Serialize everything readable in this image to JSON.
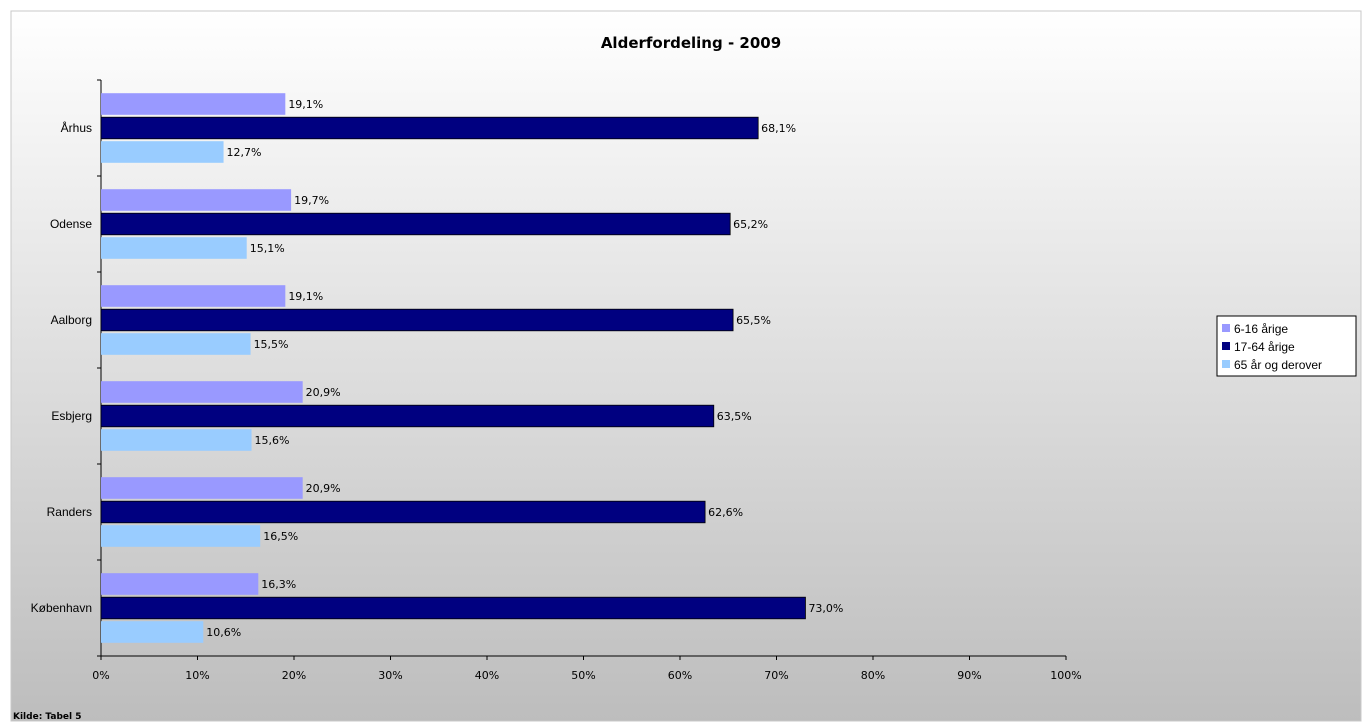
{
  "chart_data": {
    "type": "bar",
    "orientation": "horizontal",
    "title": "Alderfordeling - 2009",
    "categories": [
      "Århus",
      "Odense",
      "Aalborg",
      "Esbjerg",
      "Randers",
      "København"
    ],
    "series": [
      {
        "name": "6-16 årige",
        "color": "#9999ff",
        "values": [
          19.1,
          19.7,
          19.1,
          20.9,
          20.9,
          16.3
        ],
        "labels": [
          "19,1%",
          "19,7%",
          "19,1%",
          "20,9%",
          "20,9%",
          "16,3%"
        ]
      },
      {
        "name": "17-64 årige",
        "color": "#000080",
        "values": [
          68.1,
          65.2,
          65.5,
          63.5,
          62.6,
          73.0
        ],
        "labels": [
          "68,1%",
          "65,2%",
          "65,5%",
          "63,5%",
          "62,6%",
          "73,0%"
        ]
      },
      {
        "name": "65 år og derover",
        "color": "#99ccff",
        "values": [
          12.7,
          15.1,
          15.5,
          15.6,
          16.5,
          10.6
        ],
        "labels": [
          "12,7%",
          "15,1%",
          "15,5%",
          "15,6%",
          "16,5%",
          "10,6%"
        ]
      }
    ],
    "x_ticks": [
      "0%",
      "10%",
      "20%",
      "30%",
      "40%",
      "50%",
      "60%",
      "70%",
      "80%",
      "90%",
      "100%"
    ],
    "xlim": [
      0,
      100
    ],
    "grid": false,
    "legend_position": "right",
    "source_note": "Kilde: Tabel 5"
  }
}
